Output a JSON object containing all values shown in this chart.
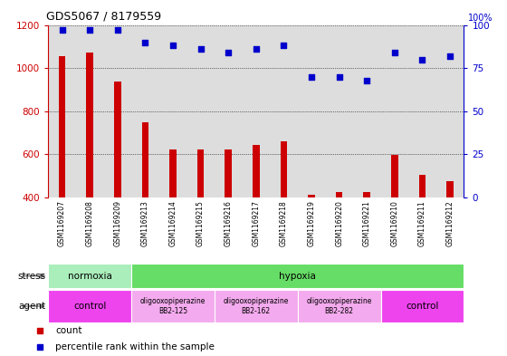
{
  "title": "GDS5067 / 8179559",
  "samples": [
    "GSM1169207",
    "GSM1169208",
    "GSM1169209",
    "GSM1169213",
    "GSM1169214",
    "GSM1169215",
    "GSM1169216",
    "GSM1169217",
    "GSM1169218",
    "GSM1169219",
    "GSM1169220",
    "GSM1169221",
    "GSM1169210",
    "GSM1169211",
    "GSM1169212"
  ],
  "counts": [
    1055,
    1070,
    938,
    748,
    622,
    622,
    622,
    645,
    662,
    415,
    425,
    425,
    598,
    505,
    478
  ],
  "percentiles": [
    97,
    97,
    97,
    90,
    88,
    86,
    84,
    86,
    88,
    70,
    70,
    68,
    84,
    80,
    82
  ],
  "bar_color": "#cc0000",
  "dot_color": "#0000cc",
  "ylim_left": [
    400,
    1200
  ],
  "ylim_right": [
    0,
    100
  ],
  "yticks_left": [
    400,
    600,
    800,
    1000,
    1200
  ],
  "yticks_right": [
    0,
    25,
    50,
    75,
    100
  ],
  "stress_groups": [
    {
      "label": "normoxia",
      "start": 0,
      "end": 3,
      "color": "#aaeebb"
    },
    {
      "label": "hypoxia",
      "start": 3,
      "end": 15,
      "color": "#66dd66"
    }
  ],
  "agent_groups": [
    {
      "label": "control",
      "start": 0,
      "end": 3,
      "color": "#ee44ee",
      "small": false
    },
    {
      "label": "oligooxopiperazine\nBB2-125",
      "start": 3,
      "end": 6,
      "color": "#f4aaee",
      "small": true
    },
    {
      "label": "oligooxopiperazine\nBB2-162",
      "start": 6,
      "end": 9,
      "color": "#f4aaee",
      "small": true
    },
    {
      "label": "oligooxopiperazine\nBB2-282",
      "start": 9,
      "end": 12,
      "color": "#f4aaee",
      "small": true
    },
    {
      "label": "control",
      "start": 12,
      "end": 15,
      "color": "#ee44ee",
      "small": false
    }
  ],
  "legend_count_color": "#cc0000",
  "legend_pct_color": "#0000cc",
  "bg_color": "#ffffff",
  "col_bg_color": "#dddddd",
  "grid_color": "black",
  "right_axis_label": "100%"
}
